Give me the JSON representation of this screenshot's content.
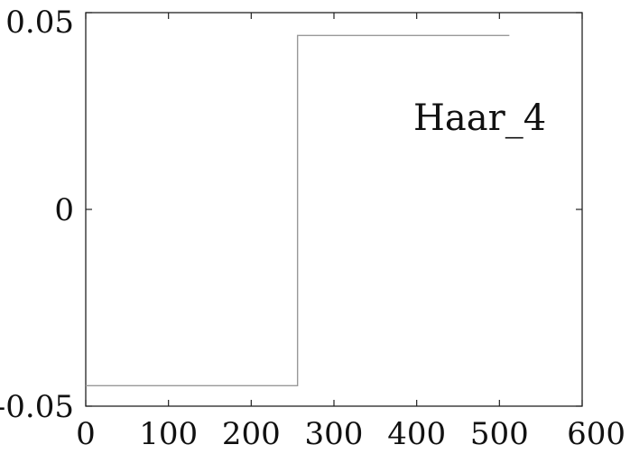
{
  "chart_data": {
    "type": "line",
    "step": true,
    "title": "",
    "xlabel": "",
    "ylabel": "",
    "xlim": [
      0,
      600
    ],
    "ylim": [
      -0.05,
      0.05
    ],
    "grid": false,
    "x_ticks": [
      0,
      100,
      200,
      300,
      400,
      500,
      600
    ],
    "x_tick_labels": [
      "0",
      "100",
      "200",
      "300",
      "400",
      "500",
      "600"
    ],
    "y_ticks": [
      -0.05,
      0,
      0.05
    ],
    "y_tick_labels": [
      "-0.05",
      "0",
      "0.05"
    ],
    "annotation": "Haar_4",
    "series": [
      {
        "x": [
          0,
          256,
          256,
          512
        ],
        "y": [
          -0.0448,
          -0.0448,
          0.0442,
          0.0442
        ],
        "color": "#999999"
      }
    ]
  }
}
